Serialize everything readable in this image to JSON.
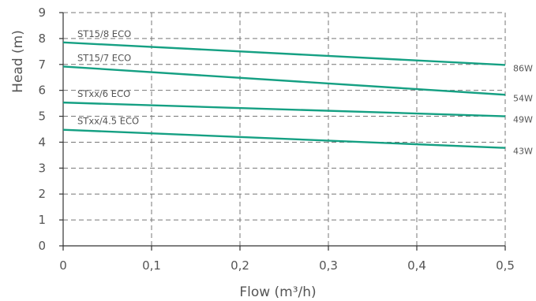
{
  "chart_data": {
    "type": "line",
    "xlabel": "Flow (m³/h)",
    "ylabel": "Head (m)",
    "xlim": [
      0,
      0.5
    ],
    "ylim": [
      0,
      9
    ],
    "x_ticks": [
      "0",
      "0,1",
      "0,2",
      "0,3",
      "0,4",
      "0,5"
    ],
    "y_ticks": [
      "0",
      "1",
      "2",
      "3",
      "4",
      "5",
      "6",
      "7",
      "8",
      "9"
    ],
    "grid": true,
    "line_color": "#15a083",
    "series": [
      {
        "name": "ST15/8 ECO",
        "power": "86W",
        "x": [
          0,
          0.5
        ],
        "y": [
          7.85,
          6.98
        ]
      },
      {
        "name": "ST15/7 ECO",
        "power": "54W",
        "x": [
          0,
          0.5
        ],
        "y": [
          6.92,
          5.83
        ]
      },
      {
        "name": "STxx/6 ECO",
        "power": "49W",
        "x": [
          0,
          0.5
        ],
        "y": [
          5.53,
          5.0
        ]
      },
      {
        "name": "STxx/4.5 ECO",
        "power": "43W",
        "x": [
          0,
          0.5
        ],
        "y": [
          4.48,
          3.78
        ]
      }
    ]
  }
}
